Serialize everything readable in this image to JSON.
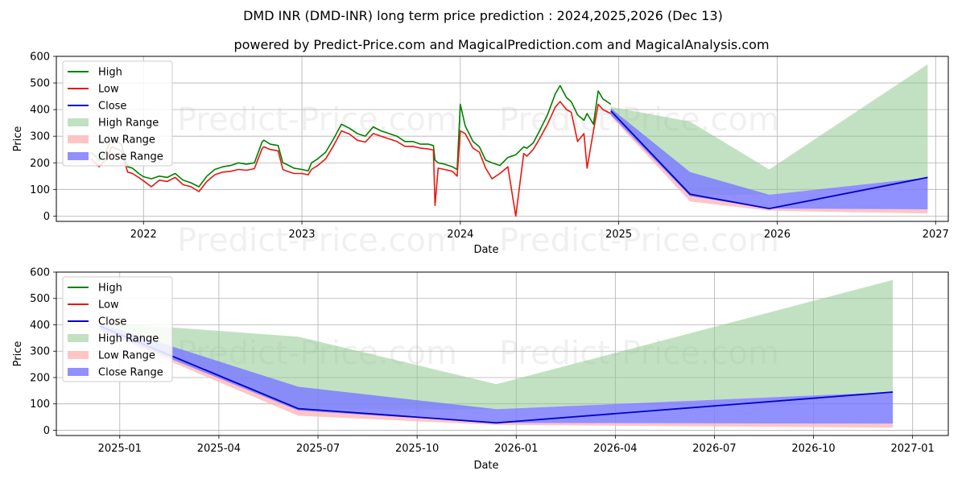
{
  "title": "DMD INR (DMD-INR) long term price prediction : 2024,2025,2026 (Dec 13)",
  "subtitle": "powered by Predict-Price.com and MagicalPrediction.com and MagicalAnalysis.com",
  "watermark": "Predict-Price.com",
  "colors": {
    "high": "#008000",
    "low": "#e8170f",
    "close": "#0000cc",
    "high_range": "#8fc98f",
    "low_range": "#ffb6b6",
    "close_range": "#7c7cff",
    "grid": "#b0b0b0"
  },
  "chart_data": [
    {
      "type": "line",
      "panel": "long-term",
      "xlabel": "Date",
      "ylabel": "Price",
      "xlim": [
        2021.45,
        2027.08
      ],
      "ylim": [
        -20,
        600
      ],
      "yticks": [
        0,
        100,
        200,
        300,
        400,
        500,
        600
      ],
      "xticks": [
        {
          "value": 2022.0,
          "label": "2022"
        },
        {
          "value": 2023.0,
          "label": "2023"
        },
        {
          "value": 2024.0,
          "label": "2024"
        },
        {
          "value": 2025.0,
          "label": "2025"
        },
        {
          "value": 2026.0,
          "label": "2026"
        },
        {
          "value": 2027.0,
          "label": "2027"
        }
      ],
      "legend": [
        "High",
        "Low",
        "Close",
        "High Range",
        "Low Range",
        "Close Range"
      ],
      "legend_position": "top-left",
      "grid": true,
      "history": {
        "x": [
          2021.67,
          2021.72,
          2021.76,
          2021.8,
          2021.86,
          2021.9,
          2021.93,
          2021.97,
          2022.0,
          2022.05,
          2022.1,
          2022.15,
          2022.2,
          2022.25,
          2022.3,
          2022.35,
          2022.4,
          2022.45,
          2022.5,
          2022.55,
          2022.6,
          2022.65,
          2022.7,
          2022.75,
          2022.76,
          2022.8,
          2022.85,
          2022.88,
          2022.9,
          2022.95,
          2023.0,
          2023.04,
          2023.06,
          2023.1,
          2023.15,
          2023.2,
          2023.25,
          2023.3,
          2023.35,
          2023.4,
          2023.45,
          2023.5,
          2023.55,
          2023.6,
          2023.65,
          2023.7,
          2023.75,
          2023.8,
          2023.83,
          2023.84,
          2023.86,
          2023.9,
          2023.95,
          2023.98,
          2024.0,
          2024.03,
          2024.08,
          2024.12,
          2024.16,
          2024.2,
          2024.25,
          2024.3,
          2024.35,
          2024.4,
          2024.42,
          2024.46,
          2024.5,
          2024.55,
          2024.6,
          2024.63,
          2024.67,
          2024.7,
          2024.74,
          2024.78,
          2024.8,
          2024.84,
          2024.87,
          2024.9,
          2024.95
        ],
        "high": [
          240,
          210,
          240,
          290,
          270,
          185,
          180,
          160,
          148,
          140,
          150,
          145,
          160,
          135,
          125,
          110,
          150,
          175,
          185,
          190,
          200,
          195,
          200,
          280,
          285,
          270,
          265,
          200,
          195,
          180,
          175,
          170,
          200,
          215,
          240,
          290,
          345,
          330,
          310,
          300,
          335,
          320,
          310,
          300,
          280,
          280,
          270,
          270,
          265,
          210,
          200,
          195,
          185,
          175,
          420,
          340,
          280,
          260,
          210,
          200,
          190,
          220,
          230,
          260,
          255,
          275,
          320,
          380,
          460,
          490,
          445,
          430,
          380,
          360,
          385,
          345,
          470,
          440,
          420
        ],
        "low": [
          215,
          185,
          210,
          260,
          245,
          165,
          160,
          145,
          132,
          110,
          135,
          130,
          145,
          118,
          110,
          92,
          130,
          155,
          165,
          168,
          175,
          172,
          178,
          255,
          260,
          250,
          245,
          175,
          170,
          160,
          160,
          155,
          175,
          190,
          215,
          265,
          320,
          308,
          285,
          278,
          310,
          300,
          290,
          280,
          262,
          262,
          255,
          252,
          248,
          40,
          180,
          175,
          168,
          150,
          320,
          310,
          255,
          240,
          180,
          140,
          160,
          185,
          0,
          235,
          225,
          250,
          290,
          345,
          410,
          430,
          400,
          390,
          280,
          310,
          180,
          320,
          420,
          400,
          385
        ]
      },
      "prediction": {
        "x": [
          2024.95,
          2025.45,
          2025.95,
          2026.95
        ],
        "close": [
          395,
          82,
          28,
          145
        ],
        "high_range": {
          "upper": [
            410,
            355,
            175,
            570
          ],
          "lower": [
            380,
            80,
            80,
            145
          ]
        },
        "low_range": {
          "upper": [
            390,
            80,
            28,
            25
          ],
          "lower": [
            375,
            55,
            20,
            10
          ]
        },
        "close_range": {
          "upper": [
            405,
            165,
            80,
            145
          ],
          "lower": [
            380,
            75,
            28,
            25
          ]
        }
      }
    },
    {
      "type": "line",
      "panel": "short-term",
      "xlabel": "Date",
      "ylabel": "Price",
      "xlim": [
        2024.84,
        2027.09
      ],
      "ylim": [
        -20,
        600
      ],
      "yticks": [
        0,
        100,
        200,
        300,
        400,
        500,
        600
      ],
      "xticks": [
        {
          "value": 2025.0,
          "label": "2025-01"
        },
        {
          "value": 2025.25,
          "label": "2025-04"
        },
        {
          "value": 2025.5,
          "label": "2025-07"
        },
        {
          "value": 2025.75,
          "label": "2025-10"
        },
        {
          "value": 2026.0,
          "label": "2026-01"
        },
        {
          "value": 2026.25,
          "label": "2026-04"
        },
        {
          "value": 2026.5,
          "label": "2026-07"
        },
        {
          "value": 2026.75,
          "label": "2026-10"
        },
        {
          "value": 2027.0,
          "label": "2027-01"
        }
      ],
      "legend": [
        "High",
        "Low",
        "Close",
        "High Range",
        "Low Range",
        "Close Range"
      ],
      "legend_position": "top-left",
      "grid": true,
      "prediction": {
        "x": [
          2024.95,
          2025.45,
          2025.95,
          2026.95
        ],
        "close": [
          395,
          82,
          28,
          145
        ],
        "high_range": {
          "upper": [
            410,
            355,
            175,
            570
          ],
          "lower": [
            380,
            80,
            80,
            145
          ]
        },
        "low_range": {
          "upper": [
            390,
            80,
            28,
            25
          ],
          "lower": [
            375,
            55,
            20,
            10
          ]
        },
        "close_range": {
          "upper": [
            405,
            165,
            80,
            145
          ],
          "lower": [
            380,
            75,
            28,
            25
          ]
        }
      }
    }
  ]
}
